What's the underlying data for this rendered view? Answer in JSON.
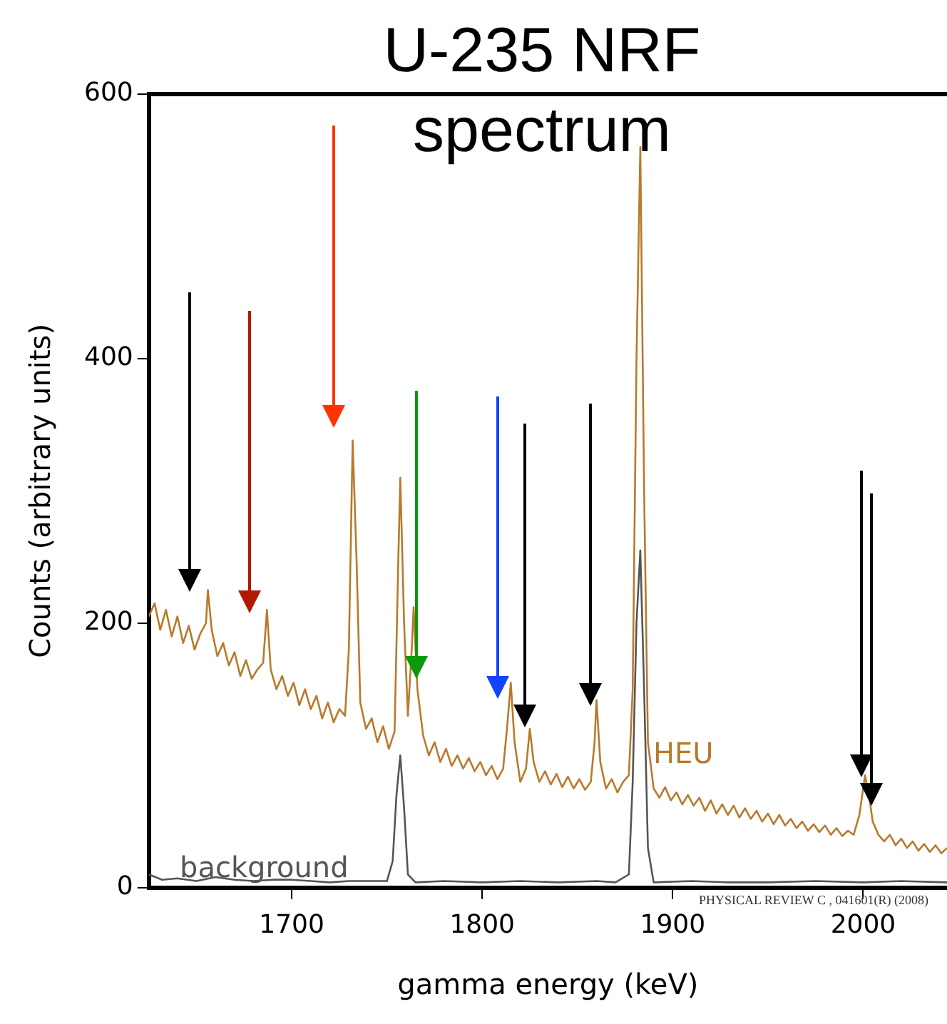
{
  "chart_data": {
    "type": "line",
    "title": "U-235 NRF spectrum",
    "xlabel": "gamma energy (keV)",
    "ylabel": "Counts (arbitrary units)",
    "xlim": [
      1625,
      2044
    ],
    "xticks": [
      1700,
      1800,
      1900,
      2000
    ],
    "ylim": [
      0,
      600
    ],
    "yticks": [
      0,
      200,
      400,
      600
    ],
    "grid": false,
    "legend": false,
    "marker": "none",
    "line_style": "solid",
    "annotations": [
      "PHYSICAL REVIEW C , 041601(R) (2008)"
    ],
    "series": [
      {
        "name": "HEU",
        "color": "#b87a2c",
        "x": [
          1625,
          1628,
          1631,
          1634,
          1637,
          1640,
          1643,
          1646,
          1649,
          1652,
          1655,
          1656,
          1658,
          1661,
          1664,
          1667,
          1670,
          1673,
          1676,
          1679,
          1682,
          1685,
          1687,
          1689,
          1692,
          1695,
          1698,
          1701,
          1704,
          1707,
          1710,
          1713,
          1716,
          1719,
          1722,
          1725,
          1728,
          1730,
          1732,
          1734,
          1736,
          1739,
          1742,
          1745,
          1748,
          1751,
          1754,
          1756,
          1757,
          1759,
          1761,
          1763,
          1764,
          1766,
          1769,
          1772,
          1775,
          1778,
          1781,
          1784,
          1787,
          1790,
          1793,
          1796,
          1799,
          1802,
          1805,
          1808,
          1811,
          1813,
          1815,
          1817,
          1820,
          1823,
          1825,
          1827,
          1830,
          1833,
          1836,
          1839,
          1842,
          1845,
          1848,
          1851,
          1854,
          1857,
          1859,
          1860,
          1862,
          1865,
          1868,
          1871,
          1874,
          1877,
          1879,
          1881,
          1883,
          1885,
          1887,
          1890,
          1893,
          1896,
          1899,
          1902,
          1905,
          1908,
          1911,
          1914,
          1917,
          1920,
          1923,
          1926,
          1929,
          1932,
          1935,
          1938,
          1941,
          1944,
          1947,
          1950,
          1953,
          1956,
          1959,
          1962,
          1965,
          1968,
          1971,
          1974,
          1977,
          1980,
          1983,
          1986,
          1989,
          1992,
          1995,
          1998,
          2001,
          2003,
          2005,
          2008,
          2011,
          2014,
          2017,
          2020,
          2023,
          2026,
          2029,
          2032,
          2035,
          2038,
          2041,
          2044
        ],
        "values": [
          205,
          215,
          195,
          210,
          190,
          205,
          185,
          198,
          180,
          192,
          200,
          225,
          195,
          175,
          185,
          168,
          178,
          160,
          172,
          158,
          165,
          170,
          210,
          165,
          150,
          160,
          145,
          155,
          138,
          150,
          135,
          145,
          128,
          140,
          125,
          135,
          130,
          180,
          338,
          250,
          140,
          120,
          128,
          110,
          122,
          105,
          118,
          250,
          310,
          200,
          130,
          180,
          212,
          150,
          115,
          100,
          110,
          95,
          105,
          92,
          100,
          90,
          98,
          88,
          95,
          85,
          92,
          82,
          90,
          120,
          155,
          110,
          80,
          90,
          120,
          95,
          80,
          88,
          78,
          86,
          76,
          84,
          75,
          82,
          74,
          80,
          110,
          142,
          95,
          75,
          82,
          72,
          80,
          85,
          150,
          400,
          560,
          300,
          110,
          75,
          68,
          76,
          66,
          72,
          63,
          70,
          62,
          68,
          58,
          66,
          56,
          63,
          55,
          62,
          53,
          60,
          52,
          58,
          50,
          56,
          48,
          55,
          47,
          52,
          45,
          50,
          43,
          48,
          42,
          47,
          40,
          45,
          39,
          43,
          40,
          55,
          85,
          70,
          50,
          40,
          35,
          40,
          32,
          37,
          30,
          35,
          28,
          33,
          27,
          32,
          26,
          30
        ]
      },
      {
        "name": "background",
        "color": "#555555",
        "x": [
          1625,
          1632,
          1640,
          1650,
          1660,
          1670,
          1680,
          1690,
          1700,
          1710,
          1720,
          1730,
          1740,
          1750,
          1753,
          1755,
          1757,
          1759,
          1761,
          1765,
          1780,
          1800,
          1820,
          1840,
          1860,
          1870,
          1877,
          1879,
          1881,
          1883,
          1885,
          1887,
          1890,
          1910,
          1930,
          1950,
          1975,
          2000,
          2020,
          2044
        ],
        "values": [
          10,
          6,
          7,
          5,
          8,
          6,
          5,
          6,
          6,
          5,
          4,
          5,
          5,
          5,
          20,
          70,
          100,
          60,
          10,
          4,
          5,
          4,
          5,
          4,
          5,
          4,
          10,
          80,
          200,
          255,
          150,
          30,
          4,
          5,
          4,
          4,
          5,
          4,
          5,
          4
        ]
      }
    ]
  }
}
